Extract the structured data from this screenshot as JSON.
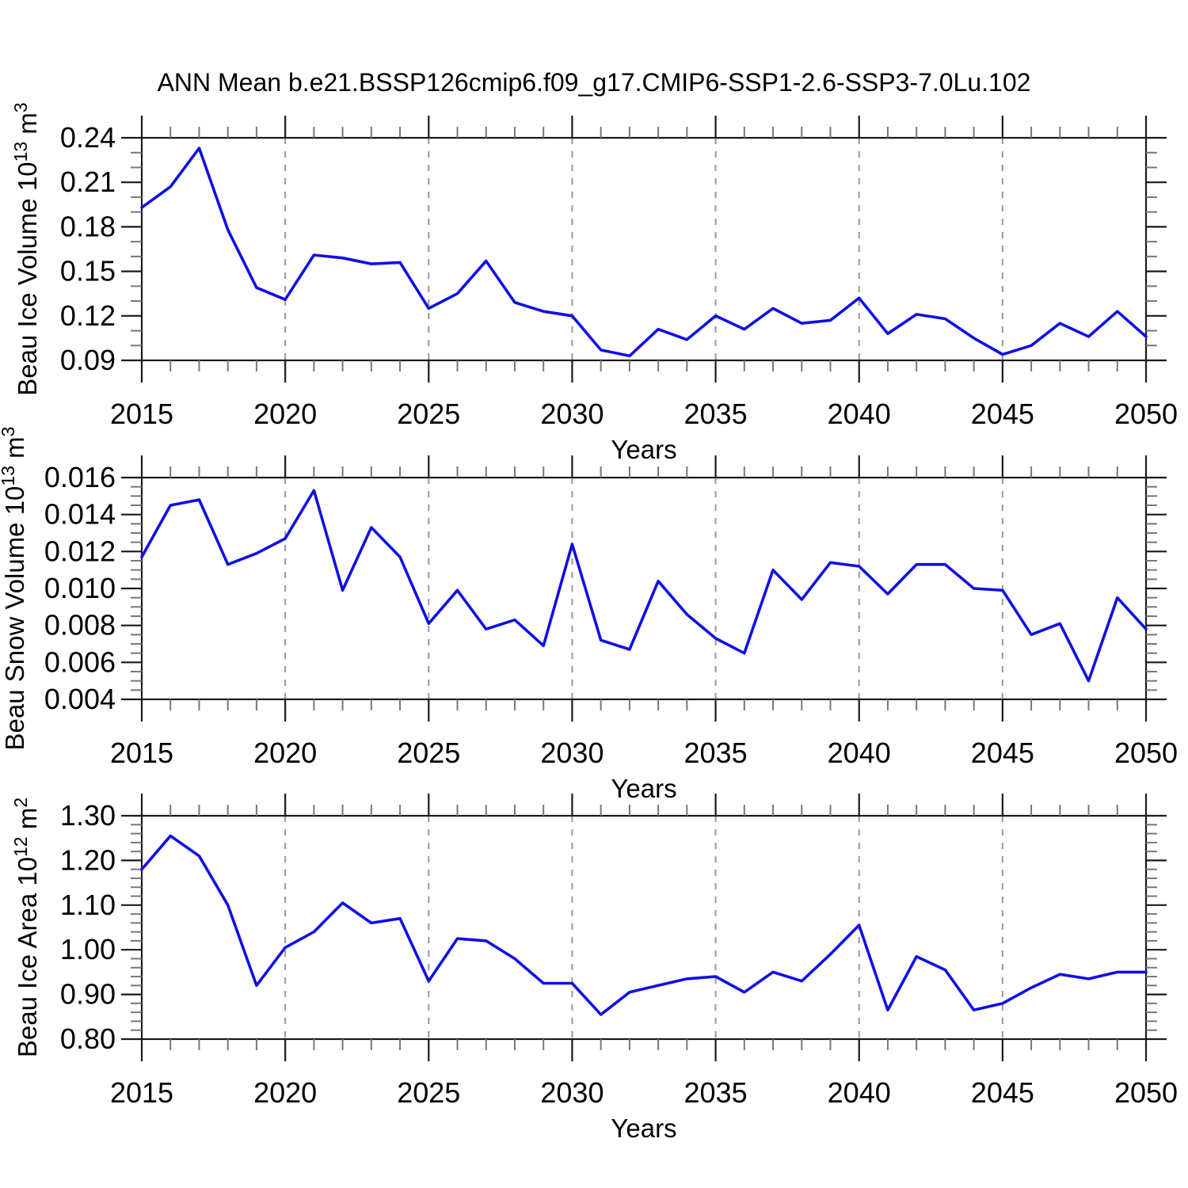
{
  "title": "ANN Mean b.e21.BSSP126cmip6.f09_g17.CMIP6-SSP1-2.6-SSP3-7.0Lu.102",
  "colors": {
    "line": "#0f0fe6",
    "axis": "#1a1a1a",
    "minor_tick": "#777777",
    "grid": "#999999",
    "background": "#ffffff"
  },
  "chart_data": {
    "type": "line",
    "x_label": "Years",
    "x_range": [
      2015,
      2050
    ],
    "x_major_tick_step": 5,
    "x_minor_tick_step": 1,
    "grid": "dashed-vertical-at-major-x",
    "legend": "none",
    "x": [
      2015,
      2016,
      2017,
      2018,
      2019,
      2020,
      2021,
      2022,
      2023,
      2024,
      2025,
      2026,
      2027,
      2028,
      2029,
      2030,
      2031,
      2032,
      2033,
      2034,
      2035,
      2036,
      2037,
      2038,
      2039,
      2040,
      2041,
      2042,
      2043,
      2044,
      2045,
      2046,
      2047,
      2048,
      2049,
      2050
    ],
    "subplots": [
      {
        "id": "ice-volume",
        "ylabel_name": "Beau Ice Volume 10",
        "ylabel_exp": "13",
        "ylabel_unit": " m",
        "ylabel_unit_exp": "3",
        "ylim": [
          0.09,
          0.24
        ],
        "ytick_step": 0.03,
        "yminor_step": 0.01,
        "ytick_decimals": 2,
        "ytick_labels": [
          "0.09",
          "0.12",
          "0.15",
          "0.18",
          "0.21",
          "0.24"
        ],
        "values": [
          0.193,
          0.207,
          0.233,
          0.178,
          0.139,
          0.131,
          0.161,
          0.159,
          0.155,
          0.156,
          0.125,
          0.135,
          0.157,
          0.129,
          0.123,
          0.12,
          0.097,
          0.093,
          0.111,
          0.104,
          0.12,
          0.111,
          0.125,
          0.115,
          0.117,
          0.132,
          0.108,
          0.121,
          0.118,
          0.105,
          0.094,
          0.1,
          0.115,
          0.106,
          0.123,
          0.106
        ]
      },
      {
        "id": "snow-volume",
        "ylabel_name": "Beau Snow Volume 10",
        "ylabel_exp": "13",
        "ylabel_unit": " m",
        "ylabel_unit_exp": "3",
        "ylim": [
          0.004,
          0.016
        ],
        "ytick_step": 0.002,
        "yminor_step": 0.0005,
        "ytick_decimals": 3,
        "ytick_labels": [
          "0.004",
          "0.006",
          "0.008",
          "0.010",
          "0.012",
          "0.014",
          "0.016"
        ],
        "values": [
          0.0117,
          0.0145,
          0.0148,
          0.0113,
          0.0119,
          0.0127,
          0.0153,
          0.0099,
          0.0133,
          0.0117,
          0.0081,
          0.0099,
          0.0078,
          0.0083,
          0.0069,
          0.0124,
          0.0072,
          0.0067,
          0.0104,
          0.0086,
          0.0073,
          0.0065,
          0.011,
          0.0094,
          0.0114,
          0.0112,
          0.0097,
          0.0113,
          0.0113,
          0.01,
          0.0099,
          0.0075,
          0.0081,
          0.005,
          0.0095,
          0.0078
        ]
      },
      {
        "id": "ice-area",
        "ylabel_name": "Beau Ice Area 10",
        "ylabel_exp": "12",
        "ylabel_unit": " m",
        "ylabel_unit_exp": "2",
        "ylim": [
          0.8,
          1.3
        ],
        "ytick_step": 0.1,
        "yminor_step": 0.02,
        "ytick_decimals": 2,
        "ytick_labels": [
          "0.80",
          "0.90",
          "1.00",
          "1.10",
          "1.20",
          "1.30"
        ],
        "values": [
          1.18,
          1.255,
          1.21,
          1.1,
          0.92,
          1.005,
          1.04,
          1.105,
          1.06,
          1.07,
          0.93,
          1.025,
          1.02,
          0.98,
          0.925,
          0.925,
          0.855,
          0.905,
          0.92,
          0.935,
          0.94,
          0.905,
          0.95,
          0.93,
          0.99,
          1.055,
          0.865,
          0.985,
          0.955,
          0.865,
          0.88,
          0.915,
          0.945,
          0.935,
          0.95,
          0.95
        ]
      }
    ]
  }
}
